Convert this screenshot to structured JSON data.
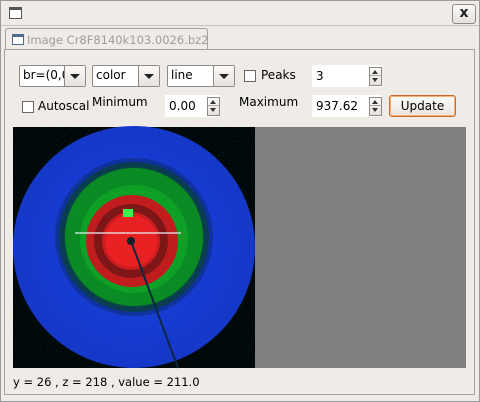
{
  "window": {
    "title": "",
    "close_label": "x"
  },
  "tab": {
    "label": "Image Cr8F8140k103.0026.bz2"
  },
  "controls": {
    "slice_select": "br=(0,0",
    "color_select": "color",
    "line_select": "line",
    "peaks_label": "Peaks",
    "peaks_value": "3",
    "autoscale_label": "Autoscal",
    "minimum_label": "Minimum",
    "minimum_value": "0.00",
    "maximum_label": "Maximum",
    "maximum_value": "937.62",
    "update_label": "Update"
  },
  "colors": {
    "ring_outer": "#1a3be0",
    "ring_green": "#0fb020",
    "ring_red": "#e01010",
    "background_right": "#7f7f7f"
  },
  "status": {
    "text": "y = 26 , z = 218 , value = 211.0"
  }
}
